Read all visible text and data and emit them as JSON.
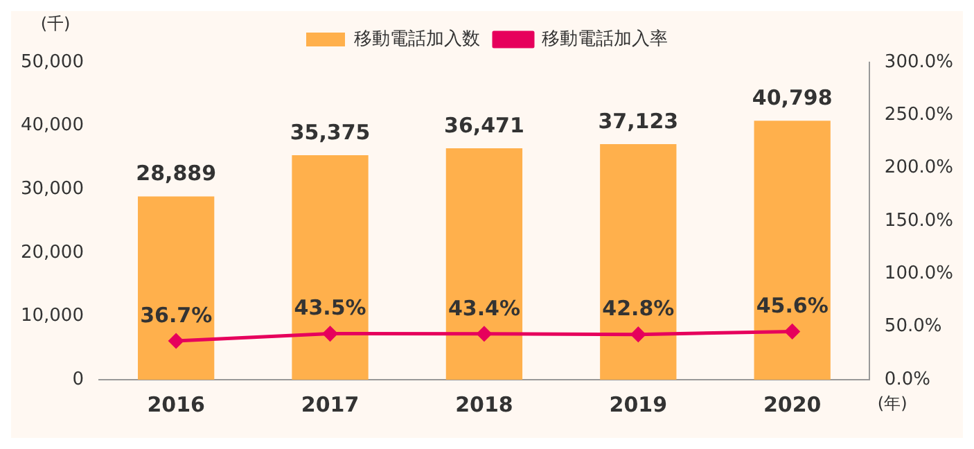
{
  "chart_data": {
    "type": "bar",
    "xlabel": "(年)",
    "ylabel": "(千)",
    "categories": [
      "2016",
      "2017",
      "2018",
      "2019",
      "2020"
    ],
    "series": [
      {
        "name": "移動電話加入数",
        "color": "#ffb04c",
        "values": [
          28889,
          35375,
          36471,
          37123,
          40798
        ],
        "value_labels": [
          "28,889",
          "35,375",
          "36,471",
          "37,123",
          "40,798"
        ]
      },
      {
        "name": "移動電話加入率",
        "type": "line",
        "axis": "y2",
        "color": "#e6005c",
        "values": [
          36.7,
          43.5,
          43.4,
          42.8,
          45.6
        ],
        "value_labels": [
          "36.7%",
          "43.5%",
          "43.4%",
          "42.8%",
          "45.6%"
        ]
      }
    ],
    "ylim": [
      0,
      50000
    ],
    "yticks": [
      {
        "value": 0,
        "label": "0"
      },
      {
        "value": 10000,
        "label": "10,000"
      },
      {
        "value": 20000,
        "label": "20,000"
      },
      {
        "value": 30000,
        "label": "30,000"
      },
      {
        "value": 40000,
        "label": "40,000"
      },
      {
        "value": 50000,
        "label": "50,000"
      }
    ],
    "y2lim": [
      0,
      300
    ],
    "y2ticks": [
      {
        "value": 0,
        "label": "0.0%"
      },
      {
        "value": 50,
        "label": "50.0%"
      },
      {
        "value": 100,
        "label": "100.0%"
      },
      {
        "value": 150,
        "label": "150.0%"
      },
      {
        "value": 200,
        "label": "200.0%"
      },
      {
        "value": 250,
        "label": "250.0%"
      },
      {
        "value": 300,
        "label": "300.0%"
      }
    ],
    "legend": "top",
    "marker": "diamond",
    "line_style": "solid",
    "grid": false
  }
}
